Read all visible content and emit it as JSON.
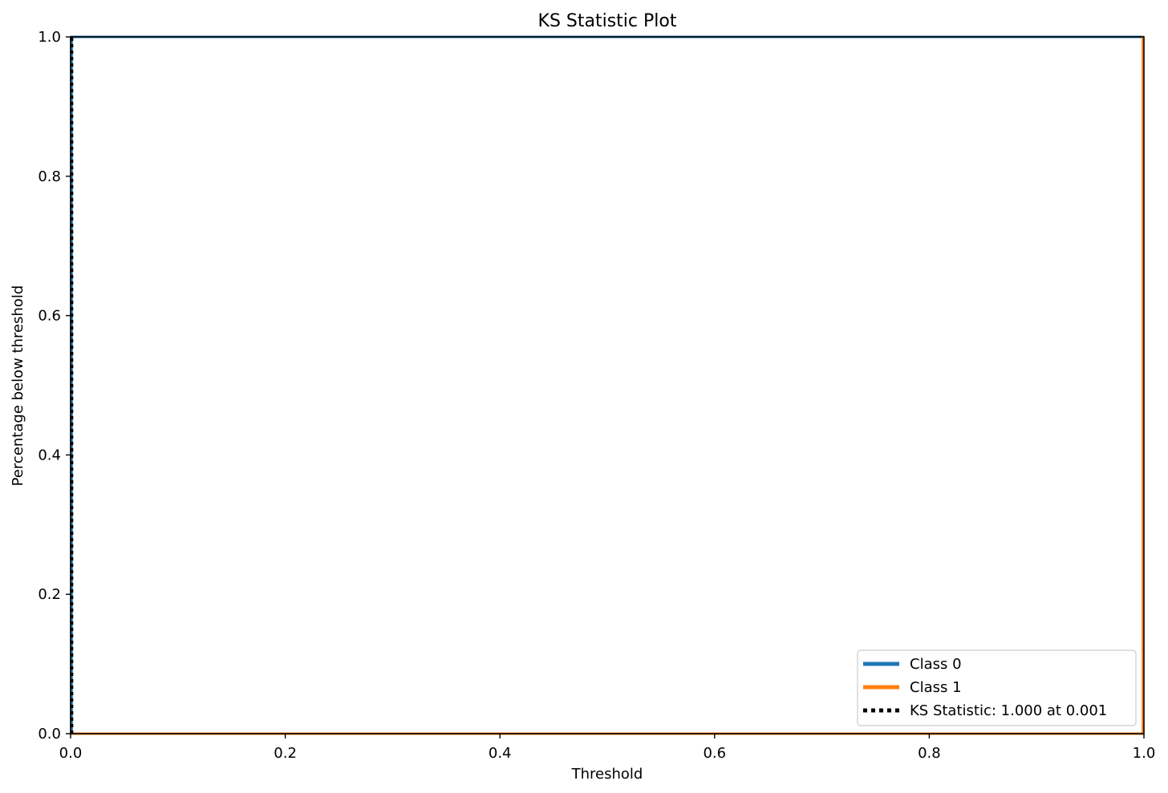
{
  "chart_data": {
    "type": "line",
    "title": "KS Statistic Plot",
    "xlabel": "Threshold",
    "ylabel": "Percentage below threshold",
    "xlim": [
      0.0,
      1.0
    ],
    "ylim": [
      0.0,
      1.0
    ],
    "x_ticks": [
      "0.0",
      "0.2",
      "0.4",
      "0.6",
      "0.8",
      "1.0"
    ],
    "y_ticks": [
      "0.0",
      "0.2",
      "0.4",
      "0.6",
      "0.8",
      "1.0"
    ],
    "grid": false,
    "legend_position": "lower-right",
    "series": [
      {
        "name": "Class 0",
        "color": "#1f77b4",
        "x": [
          0.0,
          0.001,
          0.001,
          1.0
        ],
        "y": [
          0.0,
          0.0,
          1.0,
          1.0
        ]
      },
      {
        "name": "Class 1",
        "color": "#ff7f0e",
        "x": [
          0.0,
          0.999,
          0.999,
          1.0
        ],
        "y": [
          0.0,
          0.0,
          1.0,
          1.0
        ]
      }
    ],
    "ks_line": {
      "label": "KS Statistic: 1.000 at 0.001",
      "x": 0.001,
      "y_from": 0.0,
      "y_to": 1.0,
      "color": "#000000",
      "style": "dotted"
    }
  }
}
